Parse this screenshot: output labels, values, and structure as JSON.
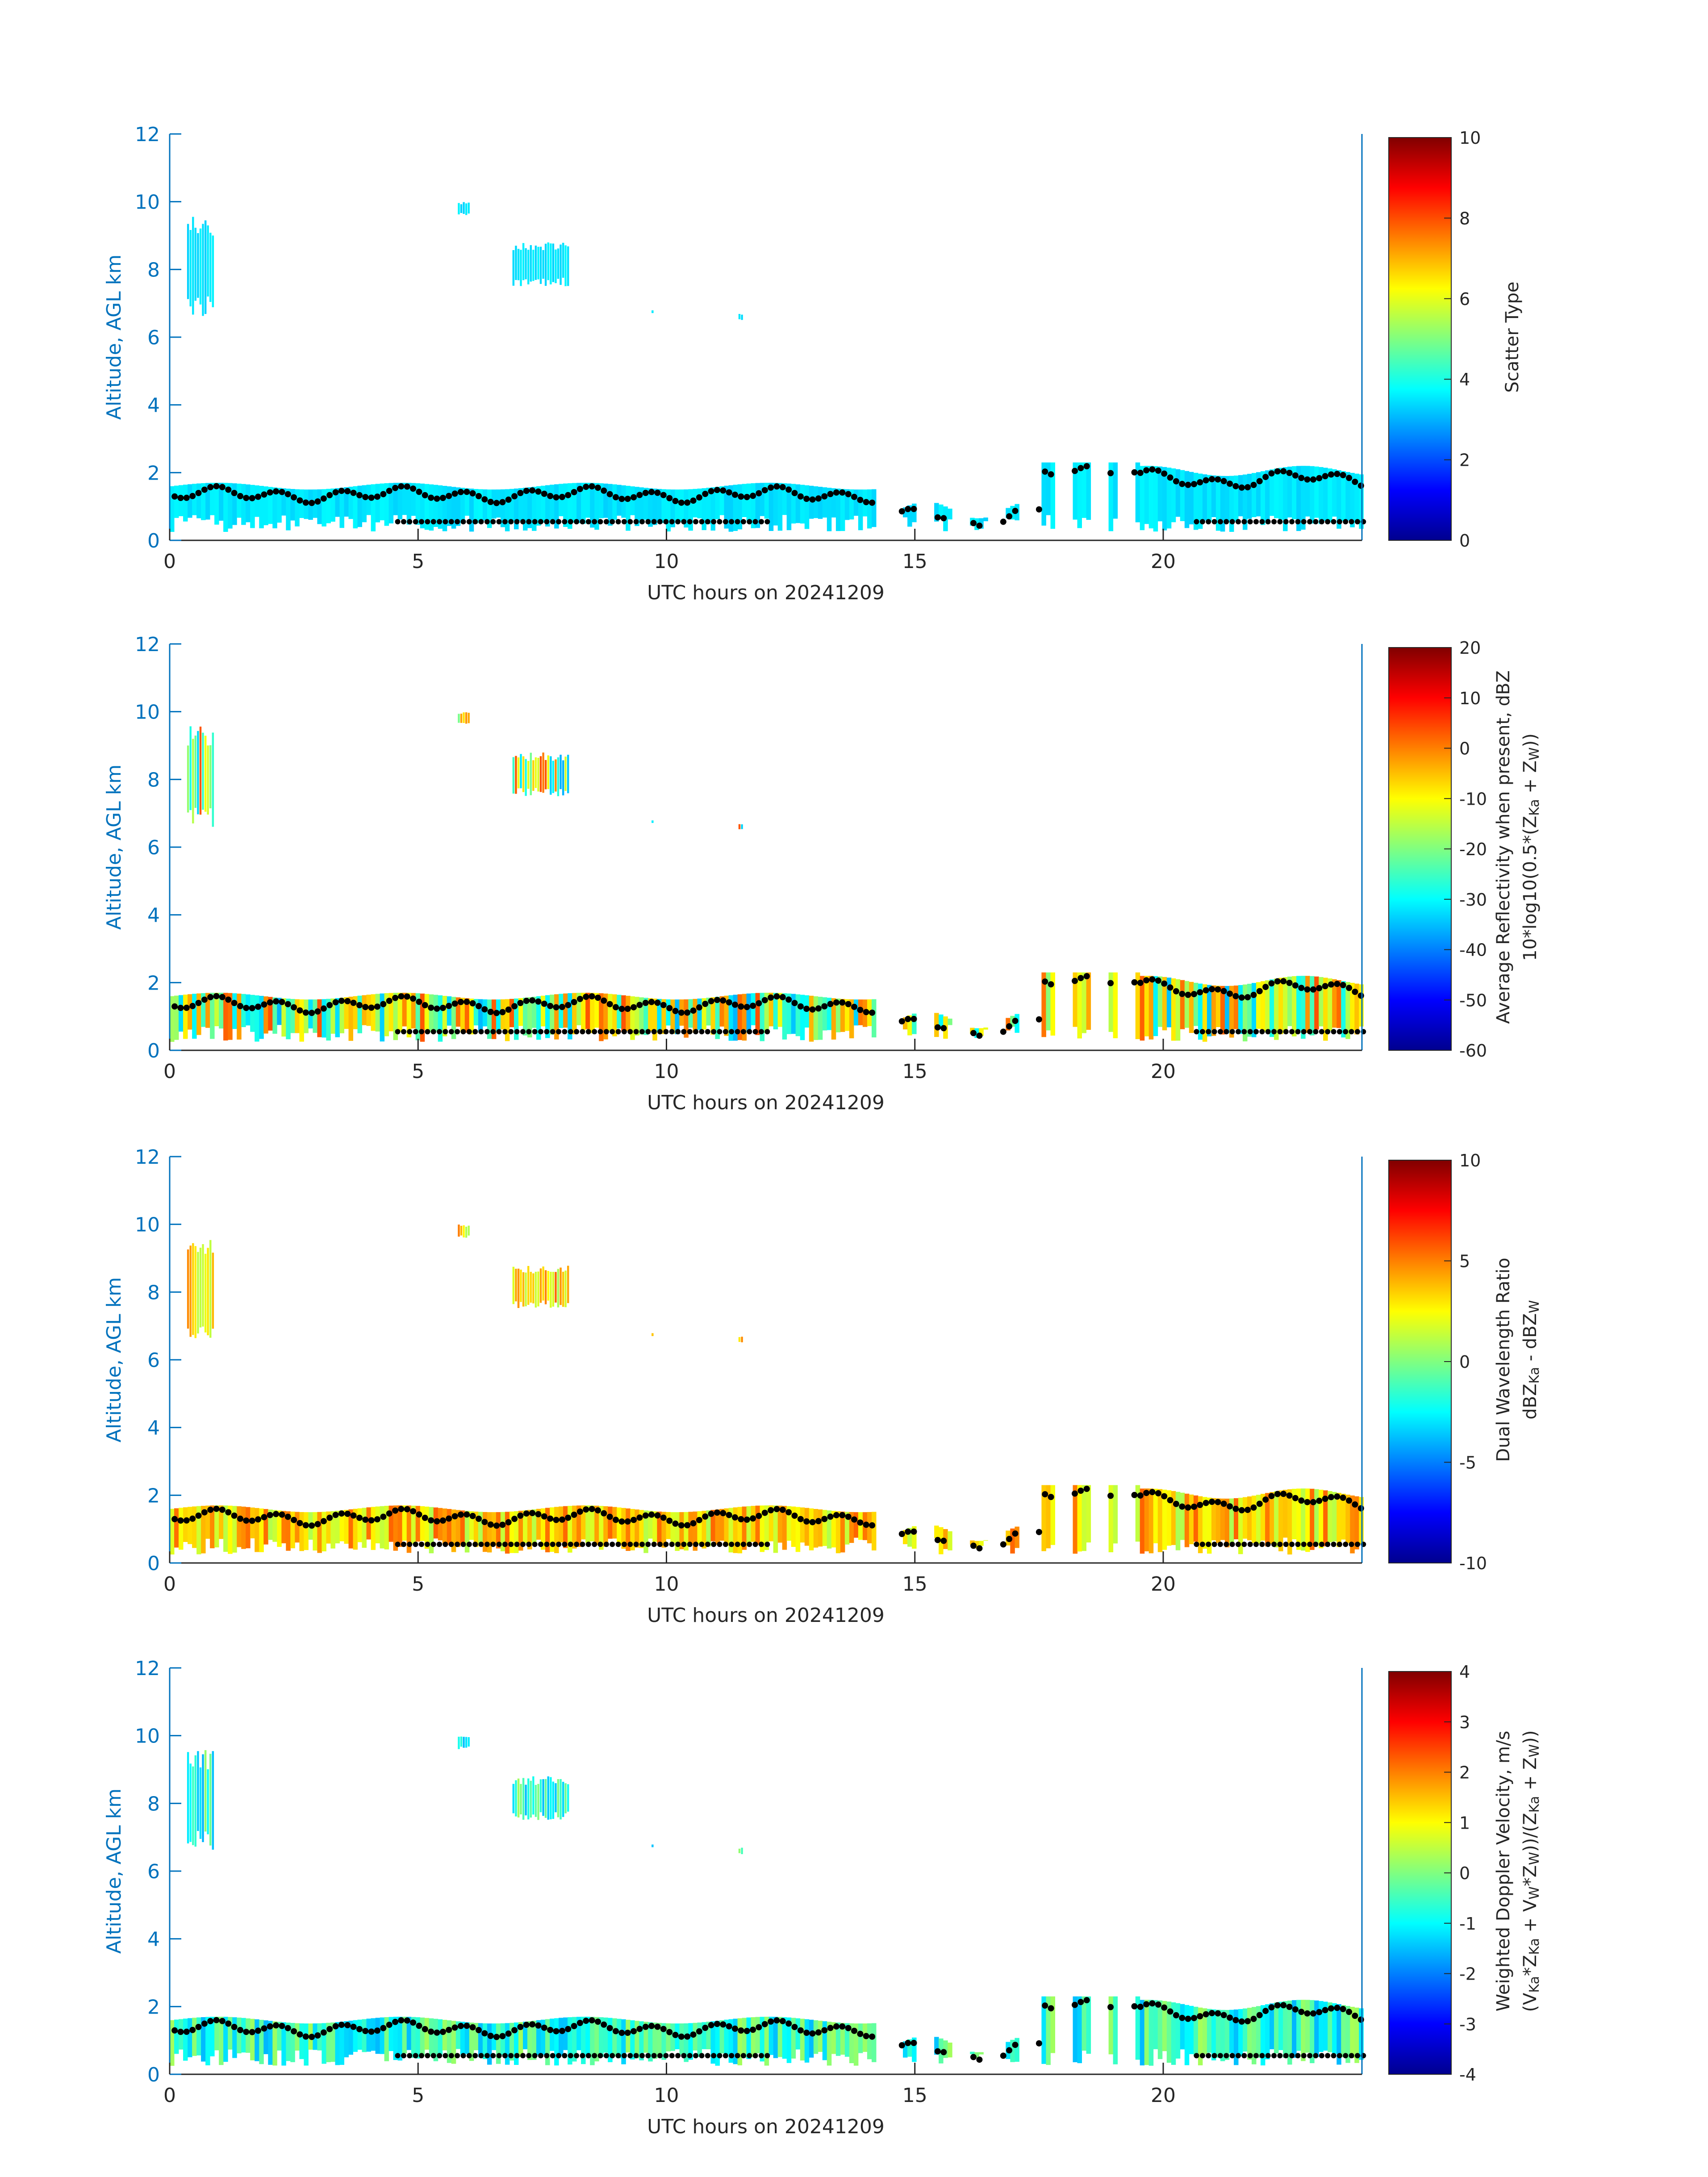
{
  "chart_data": [
    {
      "type": "heatmap",
      "xlabel": "UTC hours on 20241209",
      "ylabel": "Altitude, AGL km",
      "xlim": [
        0,
        24
      ],
      "ylim": [
        0,
        12
      ],
      "xticks": [
        "0",
        "5",
        "10",
        "15",
        "20"
      ],
      "yticks": [
        "0",
        "2",
        "4",
        "6",
        "8",
        "10",
        "12"
      ],
      "colorbar": {
        "label_lines": [
          "Scatter Type"
        ],
        "range": [
          0,
          10
        ],
        "ticks": [
          "0",
          "2",
          "4",
          "6",
          "8",
          "10"
        ],
        "colormap": "jet"
      },
      "overlay": "black dot markers tracing cloud boundary heights",
      "value_level": 0.35,
      "value_spread": 0.02
    },
    {
      "type": "heatmap",
      "xlabel": "UTC hours on 20241209",
      "ylabel": "Altitude, AGL km",
      "xlim": [
        0,
        24
      ],
      "ylim": [
        0,
        12
      ],
      "xticks": [
        "0",
        "5",
        "10",
        "15",
        "20"
      ],
      "yticks": [
        "0",
        "2",
        "4",
        "6",
        "8",
        "10",
        "12"
      ],
      "colorbar": {
        "label_lines": [
          "Average Reflectivity when present, dBZ",
          "10*log10(0.5*(Z",
          "Ka",
          " + Z",
          "W",
          "))"
        ],
        "range": [
          -60,
          20
        ],
        "ticks": [
          "-60",
          "-50",
          "-40",
          "-30",
          "-20",
          "-10",
          "0",
          "10",
          "20"
        ],
        "colormap": "jet"
      },
      "overlay": "black dot markers tracing cloud boundary heights",
      "value_level": 0.55,
      "value_spread": 0.25
    },
    {
      "type": "heatmap",
      "xlabel": "UTC hours on 20241209",
      "ylabel": "Altitude, AGL km",
      "xlim": [
        0,
        24
      ],
      "ylim": [
        0,
        12
      ],
      "xticks": [
        "0",
        "5",
        "10",
        "15",
        "20"
      ],
      "yticks": [
        "0",
        "2",
        "4",
        "6",
        "8",
        "10",
        "12"
      ],
      "colorbar": {
        "label_lines": [
          "Dual Wavelength Ratio",
          "dBZ",
          "Ka",
          " - dBZ",
          "W"
        ],
        "range": [
          -10,
          10
        ],
        "ticks": [
          "-10",
          "-5",
          "0",
          "5",
          "10"
        ],
        "colormap": "jet"
      },
      "overlay": "black dot markers tracing cloud boundary heights",
      "value_level": 0.66,
      "value_spread": 0.12
    },
    {
      "type": "heatmap",
      "xlabel": "UTC hours on 20241209",
      "ylabel": "Altitude, AGL km",
      "xlim": [
        0,
        24
      ],
      "ylim": [
        0,
        12
      ],
      "xticks": [
        "0",
        "5",
        "10",
        "15",
        "20"
      ],
      "yticks": [
        "0",
        "2",
        "4",
        "6",
        "8",
        "10",
        "12"
      ],
      "colorbar": {
        "label_lines": [
          "Weighted Doppler Velocity, m/s",
          "(V",
          "Ka",
          "*Z",
          "Ka",
          " + V",
          "W",
          "*Z",
          "W",
          "))/(Z",
          "Ka",
          " + Z",
          "W",
          "))"
        ],
        "range": [
          -4,
          4
        ],
        "ticks": [
          "-4",
          "-3",
          "-2",
          "-1",
          "0",
          "1",
          "2",
          "3",
          "4"
        ],
        "colormap": "jet"
      },
      "overlay": "black dot markers tracing cloud boundary heights",
      "value_level": 0.42,
      "value_spread": 0.12
    }
  ],
  "colors": {
    "axis": "#0072bd",
    "text": "#262626",
    "markers": "#000000"
  }
}
